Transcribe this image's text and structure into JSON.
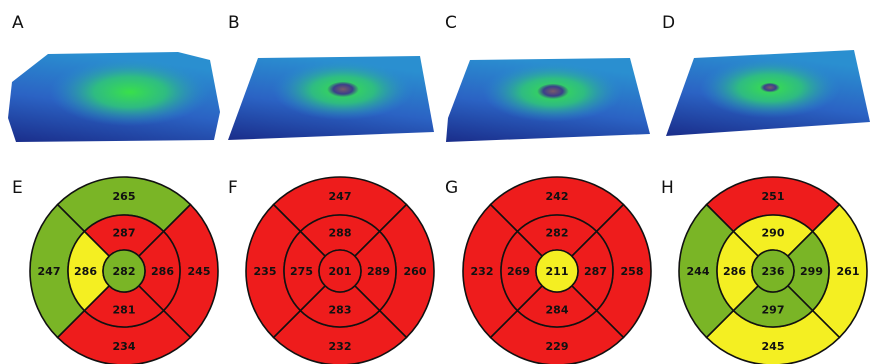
{
  "panels": [
    {
      "label": "A"
    },
    {
      "label": "B"
    },
    {
      "label": "C"
    },
    {
      "label": "D"
    }
  ],
  "grids": [
    {
      "label": "E",
      "center": {
        "value": 282,
        "color": "#7ab526"
      },
      "inner": [
        {
          "value": 287,
          "color": "#ee1c1c"
        },
        {
          "value": 286,
          "color": "#ee1c1c"
        },
        {
          "value": 281,
          "color": "#ee1c1c"
        },
        {
          "value": 286,
          "color": "#f4ef22"
        }
      ],
      "outer": [
        {
          "value": 265,
          "color": "#7ab526"
        },
        {
          "value": 245,
          "color": "#ee1c1c"
        },
        {
          "value": 234,
          "color": "#ee1c1c"
        },
        {
          "value": 247,
          "color": "#7ab526"
        }
      ]
    },
    {
      "label": "F",
      "center": {
        "value": 201,
        "color": "#ee1c1c"
      },
      "inner": [
        {
          "value": 288,
          "color": "#ee1c1c"
        },
        {
          "value": 289,
          "color": "#ee1c1c"
        },
        {
          "value": 283,
          "color": "#ee1c1c"
        },
        {
          "value": 275,
          "color": "#ee1c1c"
        }
      ],
      "outer": [
        {
          "value": 247,
          "color": "#ee1c1c"
        },
        {
          "value": 260,
          "color": "#ee1c1c"
        },
        {
          "value": 232,
          "color": "#ee1c1c"
        },
        {
          "value": 235,
          "color": "#ee1c1c"
        }
      ]
    },
    {
      "label": "G",
      "center": {
        "value": 211,
        "color": "#f4ef22"
      },
      "inner": [
        {
          "value": 282,
          "color": "#ee1c1c"
        },
        {
          "value": 287,
          "color": "#ee1c1c"
        },
        {
          "value": 284,
          "color": "#ee1c1c"
        },
        {
          "value": 269,
          "color": "#ee1c1c"
        }
      ],
      "outer": [
        {
          "value": 242,
          "color": "#ee1c1c"
        },
        {
          "value": 258,
          "color": "#ee1c1c"
        },
        {
          "value": 229,
          "color": "#ee1c1c"
        },
        {
          "value": 232,
          "color": "#ee1c1c"
        }
      ]
    },
    {
      "label": "H",
      "center": {
        "value": 236,
        "color": "#7ab526"
      },
      "inner": [
        {
          "value": 290,
          "color": "#f4ef22"
        },
        {
          "value": 299,
          "color": "#7ab526"
        },
        {
          "value": 297,
          "color": "#7ab526"
        },
        {
          "value": 286,
          "color": "#f4ef22"
        }
      ],
      "outer": [
        {
          "value": 251,
          "color": "#ee1c1c"
        },
        {
          "value": 261,
          "color": "#f4ef22"
        },
        {
          "value": 245,
          "color": "#f4ef22"
        },
        {
          "value": 244,
          "color": "#7ab526"
        }
      ]
    }
  ]
}
